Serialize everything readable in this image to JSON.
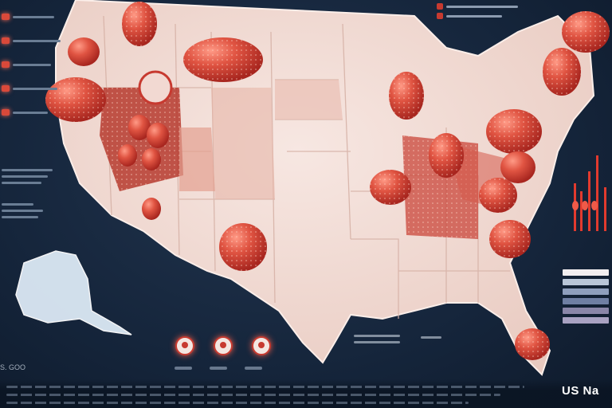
{
  "map": {
    "title": "US Na",
    "corner_label": "S. GOO",
    "colors": {
      "background": "#14243a",
      "land": "#f1ddd6",
      "land_shade": "#e7c6bb",
      "state_border": "#fbeee9",
      "strawberry": "#d9493a",
      "strawberry_dark": "#a8261f",
      "highlight": "#ff7a5c"
    },
    "icons": [
      "strawberry-icon",
      "map-pin-icon"
    ]
  }
}
